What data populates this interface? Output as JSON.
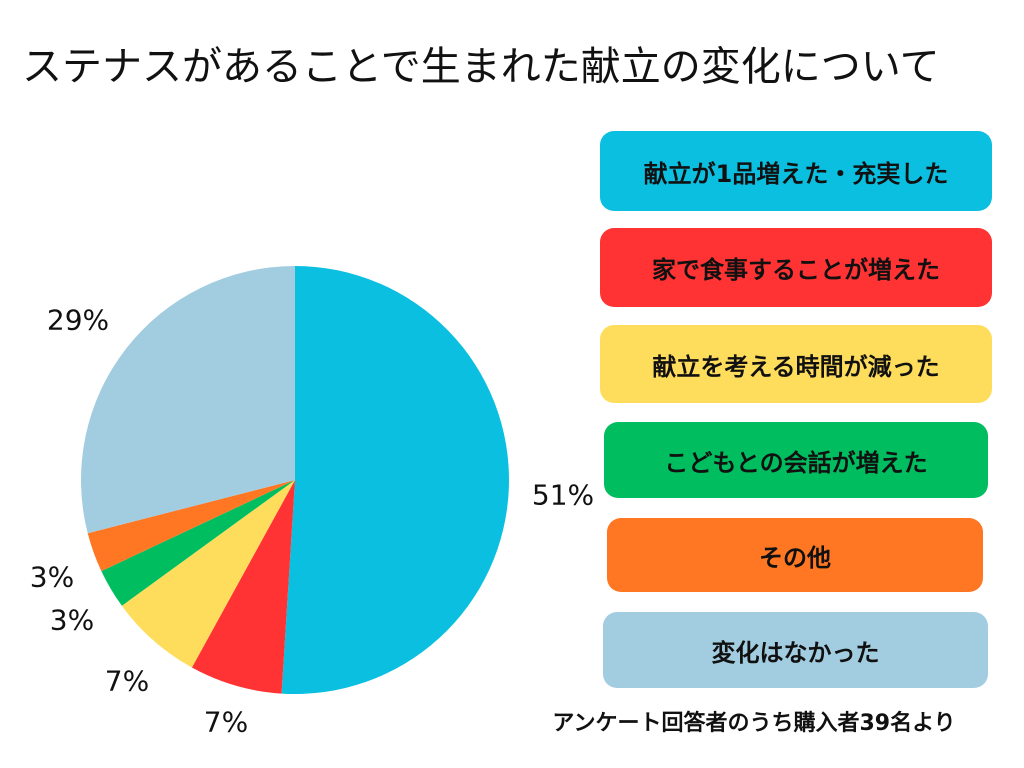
{
  "chart_data": {
    "type": "pie",
    "title": "ステナスがあることで生まれた献立の変化について",
    "start": "top",
    "direction": "clockwise",
    "slices": [
      {
        "label": "献立が1品増えた・充実した",
        "value": 51,
        "display": "51%",
        "color": "#0BBFE0"
      },
      {
        "label": "家で食事することが増えた",
        "value": 7,
        "display": "7%",
        "color": "#FF3333"
      },
      {
        "label": "献立を考える時間が減った",
        "value": 7,
        "display": "7%",
        "color": "#FFDD5C"
      },
      {
        "label": "こどもとの会話が増えた",
        "value": 3,
        "display": "3%",
        "color": "#00BE5F"
      },
      {
        "label": "その他",
        "value": 3,
        "display": "3%",
        "color": "#FF7722"
      },
      {
        "label": "変化はなかった",
        "value": 29,
        "display": "29%",
        "color": "#A2CDE0"
      }
    ],
    "legend_placement": "right",
    "note": "アンケート回答者のうち購入者39名より"
  }
}
